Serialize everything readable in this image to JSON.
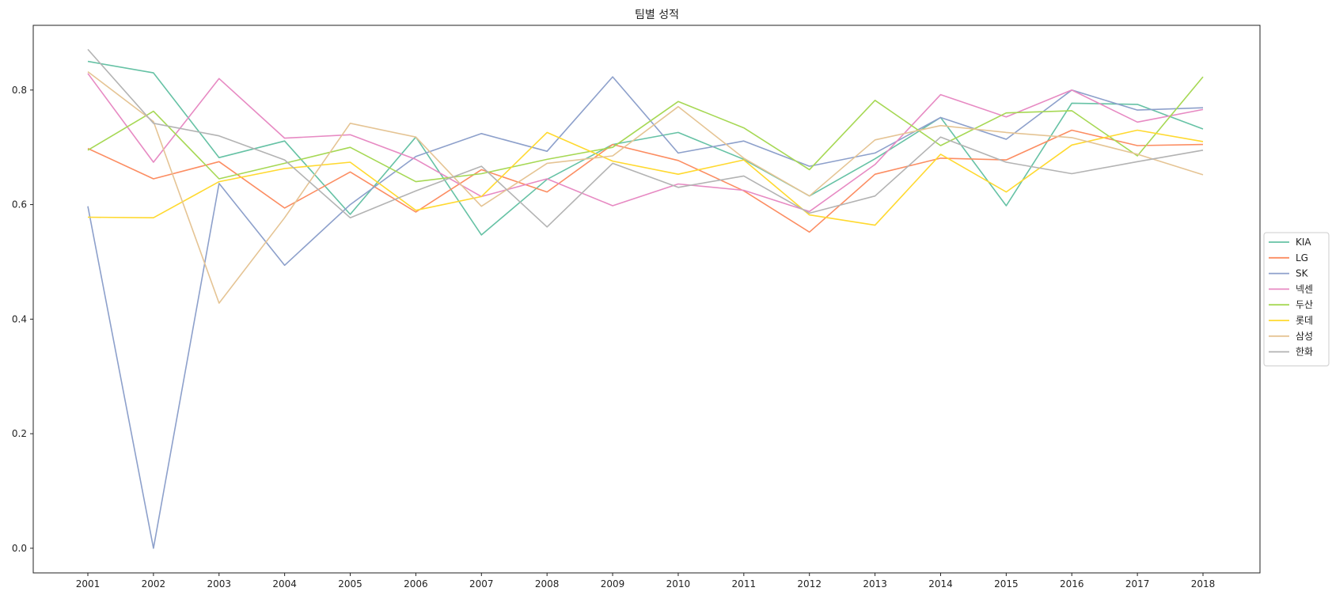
{
  "chart_data": {
    "type": "line",
    "title": "팀별 성적",
    "xlabel": "",
    "ylabel": "",
    "x": [
      "2001",
      "2002",
      "2003",
      "2004",
      "2005",
      "2006",
      "2007",
      "2008",
      "2009",
      "2010",
      "2011",
      "2012",
      "2013",
      "2014",
      "2015",
      "2016",
      "2017",
      "2018"
    ],
    "ylim": [
      -0.043,
      0.913
    ],
    "yticks": [
      "0.0",
      "0.2",
      "0.4",
      "0.6",
      "0.8"
    ],
    "ytick_values": [
      0.0,
      0.2,
      0.4,
      0.6,
      0.8
    ],
    "grid": false,
    "legend_position": "center-right-outside",
    "series": [
      {
        "name": "KIA",
        "color": "#66c2a5",
        "values": [
          0.85,
          0.83,
          0.682,
          0.711,
          0.583,
          0.718,
          0.547,
          0.644,
          0.705,
          0.726,
          0.679,
          0.615,
          0.68,
          0.752,
          0.598,
          0.777,
          0.775,
          0.732
        ]
      },
      {
        "name": "LG",
        "color": "#fc8d62",
        "values": [
          0.698,
          0.645,
          0.675,
          0.594,
          0.657,
          0.587,
          0.661,
          0.622,
          0.705,
          0.677,
          0.624,
          0.552,
          0.653,
          0.681,
          0.678,
          0.73,
          0.703,
          0.705
        ]
      },
      {
        "name": "SK",
        "color": "#8da0cb",
        "values": [
          0.597,
          0.0,
          0.637,
          0.494,
          0.6,
          0.684,
          0.724,
          0.693,
          0.823,
          0.69,
          0.711,
          0.667,
          0.69,
          0.752,
          0.714,
          0.8,
          0.765,
          0.769
        ]
      },
      {
        "name": "넥센",
        "color": "#e78ac3",
        "values": [
          0.829,
          0.674,
          0.82,
          0.716,
          0.722,
          0.679,
          0.614,
          0.645,
          0.598,
          0.636,
          0.625,
          0.588,
          0.67,
          0.792,
          0.753,
          0.8,
          0.744,
          0.766
        ]
      },
      {
        "name": "두산",
        "color": "#a6d854",
        "values": [
          0.695,
          0.763,
          0.645,
          0.672,
          0.7,
          0.64,
          0.654,
          0.679,
          0.7,
          0.78,
          0.734,
          0.661,
          0.782,
          0.703,
          0.76,
          0.764,
          0.685,
          0.823
        ]
      },
      {
        "name": "롯데",
        "color": "#ffd92f",
        "values": [
          0.578,
          0.577,
          0.64,
          0.663,
          0.674,
          0.59,
          0.614,
          0.726,
          0.676,
          0.653,
          0.678,
          0.582,
          0.564,
          0.688,
          0.622,
          0.704,
          0.73,
          0.71
        ]
      },
      {
        "name": "삼성",
        "color": "#e5c494",
        "values": [
          0.832,
          0.745,
          0.428,
          0.577,
          0.742,
          0.718,
          0.597,
          0.672,
          0.685,
          0.771,
          0.681,
          0.615,
          0.713,
          0.738,
          0.726,
          0.717,
          0.688,
          0.652
        ]
      },
      {
        "name": "한화",
        "color": "#b3b3b3",
        "values": [
          0.871,
          0.742,
          0.72,
          0.678,
          0.577,
          0.624,
          0.667,
          0.561,
          0.672,
          0.63,
          0.65,
          0.585,
          0.615,
          0.718,
          0.674,
          0.654,
          0.675,
          0.695
        ]
      }
    ]
  }
}
